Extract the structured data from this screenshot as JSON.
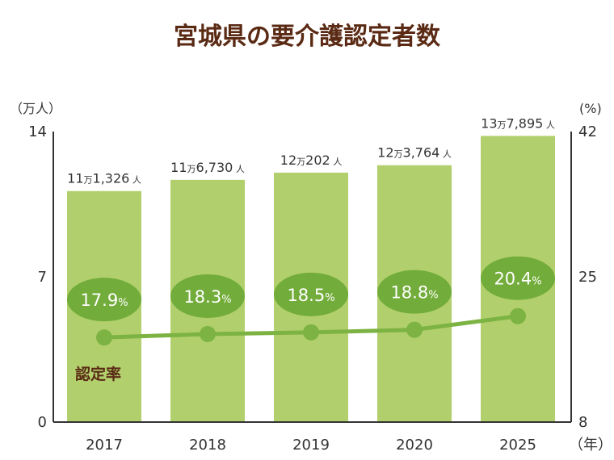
{
  "chart_data": {
    "type": "bar",
    "title": "宮城県の要介護認定者数",
    "left_unit": "（万人）",
    "right_unit": "(%)",
    "x_unit": "（年）",
    "categories": [
      "2017",
      "2018",
      "2019",
      "2020",
      "2025"
    ],
    "y_left": {
      "ticks": [
        "0",
        "7",
        "14"
      ],
      "range": [
        0,
        14
      ]
    },
    "y_right": {
      "ticks": [
        "8",
        "25",
        "42"
      ],
      "range": [
        8,
        42
      ]
    },
    "series": [
      {
        "type": "bar",
        "values": [
          11.1326,
          11.673,
          12.0202,
          12.3764,
          13.7895
        ],
        "labels": [
          {
            "main": "11",
            "man": "万",
            "rest": "1,326",
            "nin": "人"
          },
          {
            "main": "11",
            "man": "万",
            "rest": "6,730",
            "nin": "人"
          },
          {
            "main": "12",
            "man": "万",
            "rest": "202",
            "nin": "人"
          },
          {
            "main": "12",
            "man": "万",
            "rest": "3,764",
            "nin": "人"
          },
          {
            "main": "13",
            "man": "万",
            "rest": "7,895",
            "nin": "人"
          }
        ]
      },
      {
        "name": "認定率",
        "type": "line",
        "axis": "right",
        "values": [
          17.9,
          18.3,
          18.5,
          18.8,
          20.4
        ],
        "labels": [
          {
            "num": "17.9",
            "pct": "%"
          },
          {
            "num": "18.3",
            "pct": "%"
          },
          {
            "num": "18.5",
            "pct": "%"
          },
          {
            "num": "18.8",
            "pct": "%"
          },
          {
            "num": "20.4",
            "pct": "%"
          }
        ]
      }
    ],
    "colors": {
      "bar": "#b1d06d",
      "line": "#7cb342",
      "badge": "#72ac3a",
      "title": "#5a2a14",
      "axis": "#333333"
    }
  }
}
